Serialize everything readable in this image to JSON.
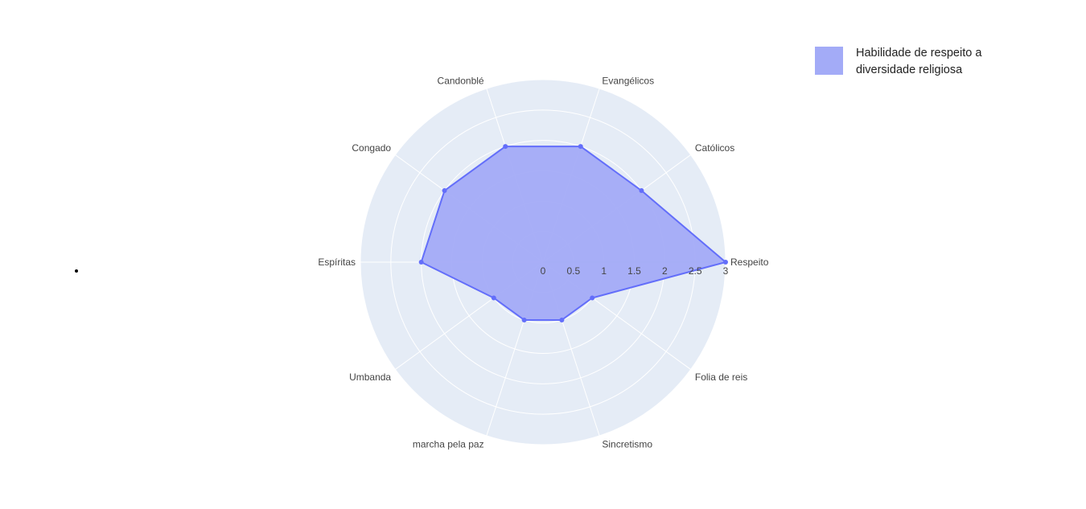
{
  "chart_data": {
    "type": "radar",
    "categories": [
      "Respeito",
      "Católicos",
      "Evangélicos",
      "Candonblé",
      "Congado",
      "Espíritas",
      "Umbanda",
      "marcha pela paz",
      "Sincretismo",
      "Folia de reis"
    ],
    "series": [
      {
        "name": "Habilidade de respeito a diversidade religiosa",
        "values": [
          3,
          2,
          2,
          2,
          2,
          2,
          1,
          1,
          1,
          1
        ]
      }
    ],
    "radial_range": [
      0,
      3
    ],
    "radial_ticks": [
      "0",
      "0.5",
      "1",
      "1.5",
      "2",
      "2.5",
      "3"
    ],
    "fill": "toself",
    "colors": {
      "line": "#636efa",
      "fill": "#a3abf7",
      "background": "#e5ecf6",
      "grid": "#ffffff",
      "text": "#444444"
    },
    "legend_position": "top-right"
  },
  "legend": {
    "label": "Habilidade de respeito a diversidade religiosa"
  }
}
